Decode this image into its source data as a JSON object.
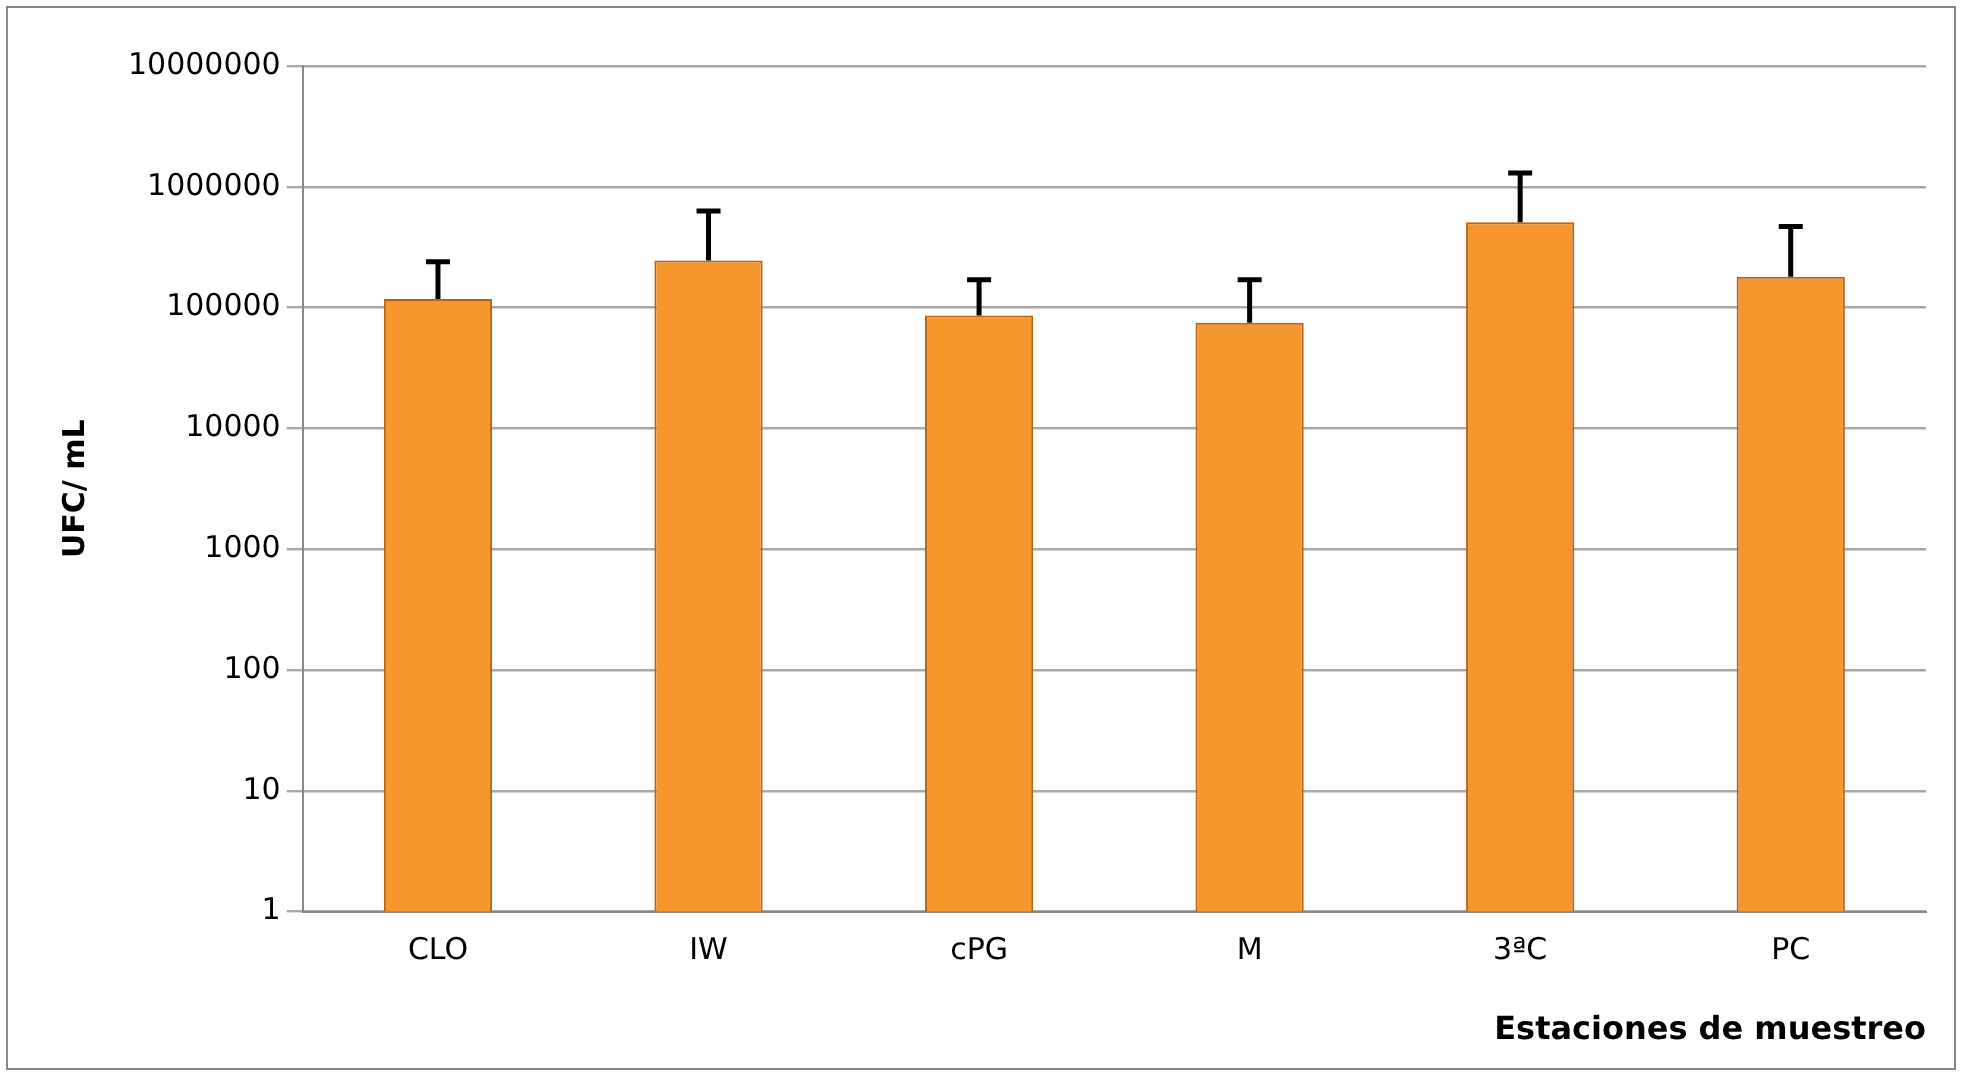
{
  "chart_data": {
    "type": "bar",
    "xlabel": "Estaciones de muestreo",
    "ylabel": "UFC/ mL",
    "categories": [
      "CLO",
      "IW",
      "cPG",
      "M",
      "3ªC",
      "PC"
    ],
    "values": [
      118000,
      245000,
      86000,
      75000,
      510000,
      180000
    ],
    "errors": [
      [
        118000,
        240000
      ],
      [
        245000,
        630000
      ],
      [
        86000,
        170000
      ],
      [
        75000,
        170000
      ],
      [
        510000,
        1300000
      ],
      [
        180000,
        470000
      ]
    ],
    "color": "#f7962c",
    "log": "y",
    "ylim": [
      1,
      10000000
    ],
    "yticks": [
      1,
      10,
      100,
      1000,
      10000,
      100000,
      1000000,
      10000000
    ],
    "grid": "y",
    "legend": false
  }
}
